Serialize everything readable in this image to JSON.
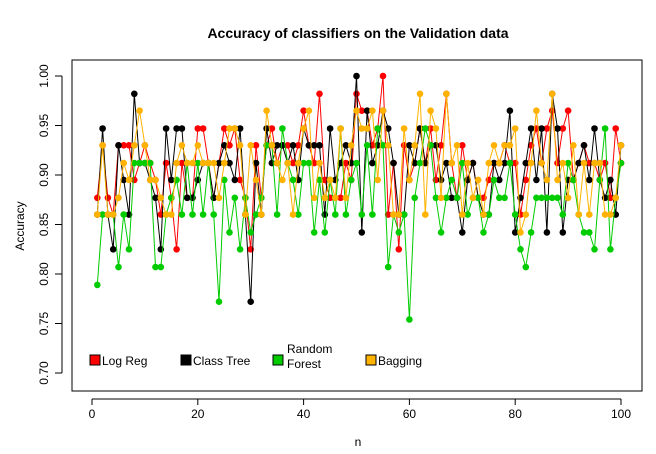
{
  "chart_data": {
    "type": "line",
    "title": "Accuracy of classifiers on the Validation data",
    "xlabel": "n",
    "ylabel": "Accuracy",
    "xlim": [
      0,
      100
    ],
    "ylim": [
      0.7,
      1.0
    ],
    "x_ticks": [
      0,
      20,
      40,
      60,
      80,
      100
    ],
    "y_ticks": [
      0.7,
      0.75,
      0.8,
      0.85,
      0.9,
      0.95,
      1.0
    ],
    "x_tick_labels": [
      "0",
      "20",
      "40",
      "60",
      "80",
      "100"
    ],
    "y_tick_labels": [
      "0.70",
      "0.75",
      "0.80",
      "0.85",
      "0.90",
      "0.95",
      "1.00"
    ],
    "legend_position": "bottom-left",
    "series": [
      {
        "name": "Log Reg",
        "color": "#FF0000",
        "values": [
          0.877,
          0.93,
          0.877,
          0.86,
          0.93,
          0.93,
          0.93,
          0.895,
          0.912,
          0.93,
          0.912,
          0.895,
          0.86,
          0.912,
          0.877,
          0.825,
          0.912,
          0.877,
          0.877,
          0.947,
          0.947,
          0.912,
          0.877,
          0.912,
          0.947,
          0.93,
          0.947,
          0.895,
          0.877,
          0.825,
          0.93,
          0.877,
          0.93,
          0.947,
          0.912,
          0.93,
          0.93,
          0.912,
          0.93,
          0.965,
          0.93,
          0.912,
          0.982,
          0.895,
          0.877,
          0.877,
          0.877,
          0.912,
          0.895,
          0.982,
          0.965,
          0.965,
          0.93,
          0.947,
          1.0,
          0.86,
          0.912,
          0.825,
          0.93,
          0.895,
          0.912,
          0.947,
          0.912,
          0.947,
          0.895,
          0.93,
          0.982,
          0.912,
          0.877,
          0.93,
          0.895,
          0.912,
          0.877,
          0.877,
          0.895,
          0.912,
          0.912,
          0.93,
          0.912,
          0.912,
          0.86,
          0.895,
          0.93,
          0.947,
          0.912,
          0.947,
          0.965,
          0.912,
          0.947,
          0.965,
          0.895,
          0.912,
          0.93,
          0.912,
          0.912,
          0.895,
          0.912,
          0.877,
          0.947,
          0.912
        ]
      },
      {
        "name": "Class Tree",
        "color": "#000000",
        "values": [
          0.86,
          0.947,
          0.86,
          0.825,
          0.93,
          0.895,
          0.86,
          0.982,
          0.912,
          0.912,
          0.895,
          0.877,
          0.825,
          0.947,
          0.895,
          0.947,
          0.947,
          0.877,
          0.877,
          0.895,
          0.912,
          0.912,
          0.877,
          0.912,
          0.93,
          0.912,
          0.895,
          0.947,
          0.86,
          0.772,
          0.912,
          0.86,
          0.947,
          0.912,
          0.93,
          0.93,
          0.912,
          0.93,
          0.895,
          0.947,
          0.93,
          0.93,
          0.93,
          0.86,
          0.947,
          0.895,
          0.912,
          0.93,
          0.912,
          1.0,
          0.842,
          0.965,
          0.912,
          0.93,
          0.965,
          0.947,
          0.912,
          0.86,
          0.86,
          0.93,
          0.912,
          0.947,
          0.912,
          0.93,
          0.93,
          0.895,
          0.912,
          0.877,
          0.877,
          0.842,
          0.895,
          0.912,
          0.877,
          0.86,
          0.86,
          0.912,
          0.895,
          0.912,
          0.965,
          0.842,
          0.877,
          0.912,
          0.947,
          0.895,
          0.947,
          0.842,
          0.982,
          0.947,
          0.842,
          0.895,
          0.895,
          0.912,
          0.93,
          0.895,
          0.947,
          0.895,
          0.877,
          0.895,
          0.86,
          0.93
        ]
      },
      {
        "name": "Random Forest",
        "color": "#00CC00",
        "values": [
          0.789,
          0.86,
          0.86,
          0.86,
          0.807,
          0.86,
          0.825,
          0.912,
          0.912,
          0.912,
          0.912,
          0.807,
          0.807,
          0.86,
          0.877,
          0.895,
          0.86,
          0.912,
          0.86,
          0.912,
          0.86,
          0.912,
          0.86,
          0.772,
          0.895,
          0.842,
          0.877,
          0.825,
          0.877,
          0.842,
          0.86,
          0.877,
          0.93,
          0.93,
          0.86,
          0.947,
          0.912,
          0.895,
          0.86,
          0.912,
          0.912,
          0.842,
          0.895,
          0.842,
          0.895,
          0.86,
          0.947,
          0.86,
          0.895,
          0.912,
          0.86,
          0.93,
          0.86,
          0.947,
          0.93,
          0.807,
          0.86,
          0.842,
          0.86,
          0.754,
          0.877,
          0.912,
          0.947,
          0.93,
          0.877,
          0.842,
          0.877,
          0.895,
          0.877,
          0.912,
          0.86,
          0.877,
          0.877,
          0.842,
          0.86,
          0.895,
          0.877,
          0.877,
          0.912,
          0.86,
          0.825,
          0.807,
          0.842,
          0.877,
          0.877,
          0.877,
          0.877,
          0.877,
          0.86,
          0.912,
          0.895,
          0.86,
          0.842,
          0.842,
          0.825,
          0.895,
          0.947,
          0.825,
          0.877,
          0.912
        ]
      },
      {
        "name": "Bagging",
        "color": "#FFB300",
        "values": [
          0.86,
          0.93,
          0.86,
          0.86,
          0.877,
          0.912,
          0.895,
          0.93,
          0.965,
          0.93,
          0.895,
          0.895,
          0.877,
          0.86,
          0.86,
          0.912,
          0.93,
          0.912,
          0.912,
          0.93,
          0.912,
          0.912,
          0.912,
          0.877,
          0.912,
          0.947,
          0.947,
          0.93,
          0.86,
          0.93,
          0.895,
          0.86,
          0.965,
          0.93,
          0.912,
          0.895,
          0.912,
          0.86,
          0.912,
          0.947,
          0.965,
          0.877,
          0.912,
          0.877,
          0.895,
          0.877,
          0.947,
          0.877,
          0.93,
          0.965,
          0.947,
          0.947,
          0.965,
          0.895,
          0.965,
          0.93,
          0.86,
          0.86,
          0.947,
          0.895,
          0.93,
          0.982,
          0.86,
          0.965,
          0.947,
          0.877,
          0.982,
          0.912,
          0.93,
          0.86,
          0.912,
          0.877,
          0.895,
          0.86,
          0.912,
          0.93,
          0.912,
          0.93,
          0.93,
          0.947,
          0.842,
          0.86,
          0.912,
          0.965,
          0.912,
          0.895,
          0.982,
          0.895,
          0.912,
          0.877,
          0.93,
          0.86,
          0.912,
          0.86,
          0.912,
          0.912,
          0.86,
          0.86,
          0.877,
          0.93
        ]
      }
    ]
  }
}
